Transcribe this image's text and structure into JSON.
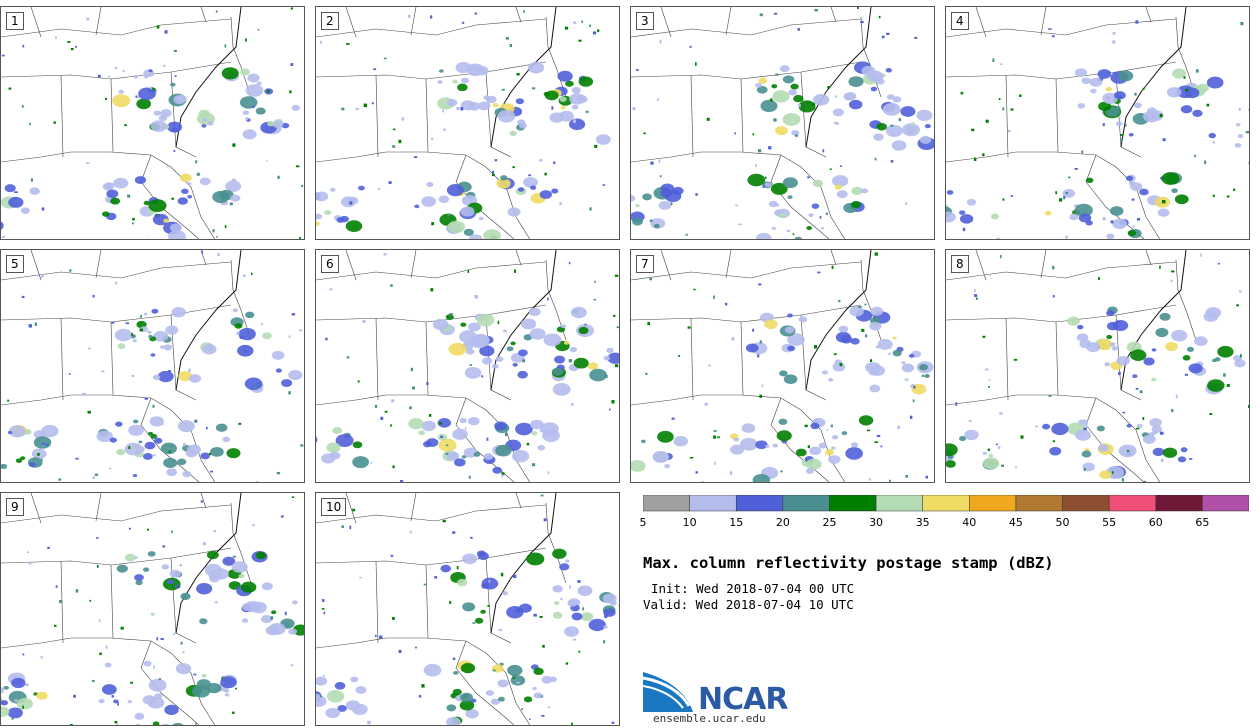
{
  "panels": [
    {
      "label": "1"
    },
    {
      "label": "2"
    },
    {
      "label": "3"
    },
    {
      "label": "4"
    },
    {
      "label": "5"
    },
    {
      "label": "6"
    },
    {
      "label": "7"
    },
    {
      "label": "8"
    },
    {
      "label": "9"
    },
    {
      "label": "10"
    }
  ],
  "colorbar": {
    "levels": [
      "5",
      "10",
      "15",
      "20",
      "25",
      "30",
      "35",
      "40",
      "45",
      "50",
      "55",
      "60",
      "65"
    ],
    "colors": [
      "#a0a0a0",
      "#b4bcec",
      "#5060d8",
      "#4a9090",
      "#008000",
      "#b4dcb4",
      "#f0dc64",
      "#f0a820",
      "#b07830",
      "#8c5030",
      "#f05078",
      "#701838",
      "#b050a8"
    ]
  },
  "title": "Max. column reflectivity postage stamp (dBZ)",
  "init": "Init: Wed 2018-07-04 00 UTC",
  "valid": "Valid: Wed 2018-07-04 10 UTC",
  "logo": {
    "text": "NCAR",
    "site": "ensemble.ucar.edu"
  }
}
